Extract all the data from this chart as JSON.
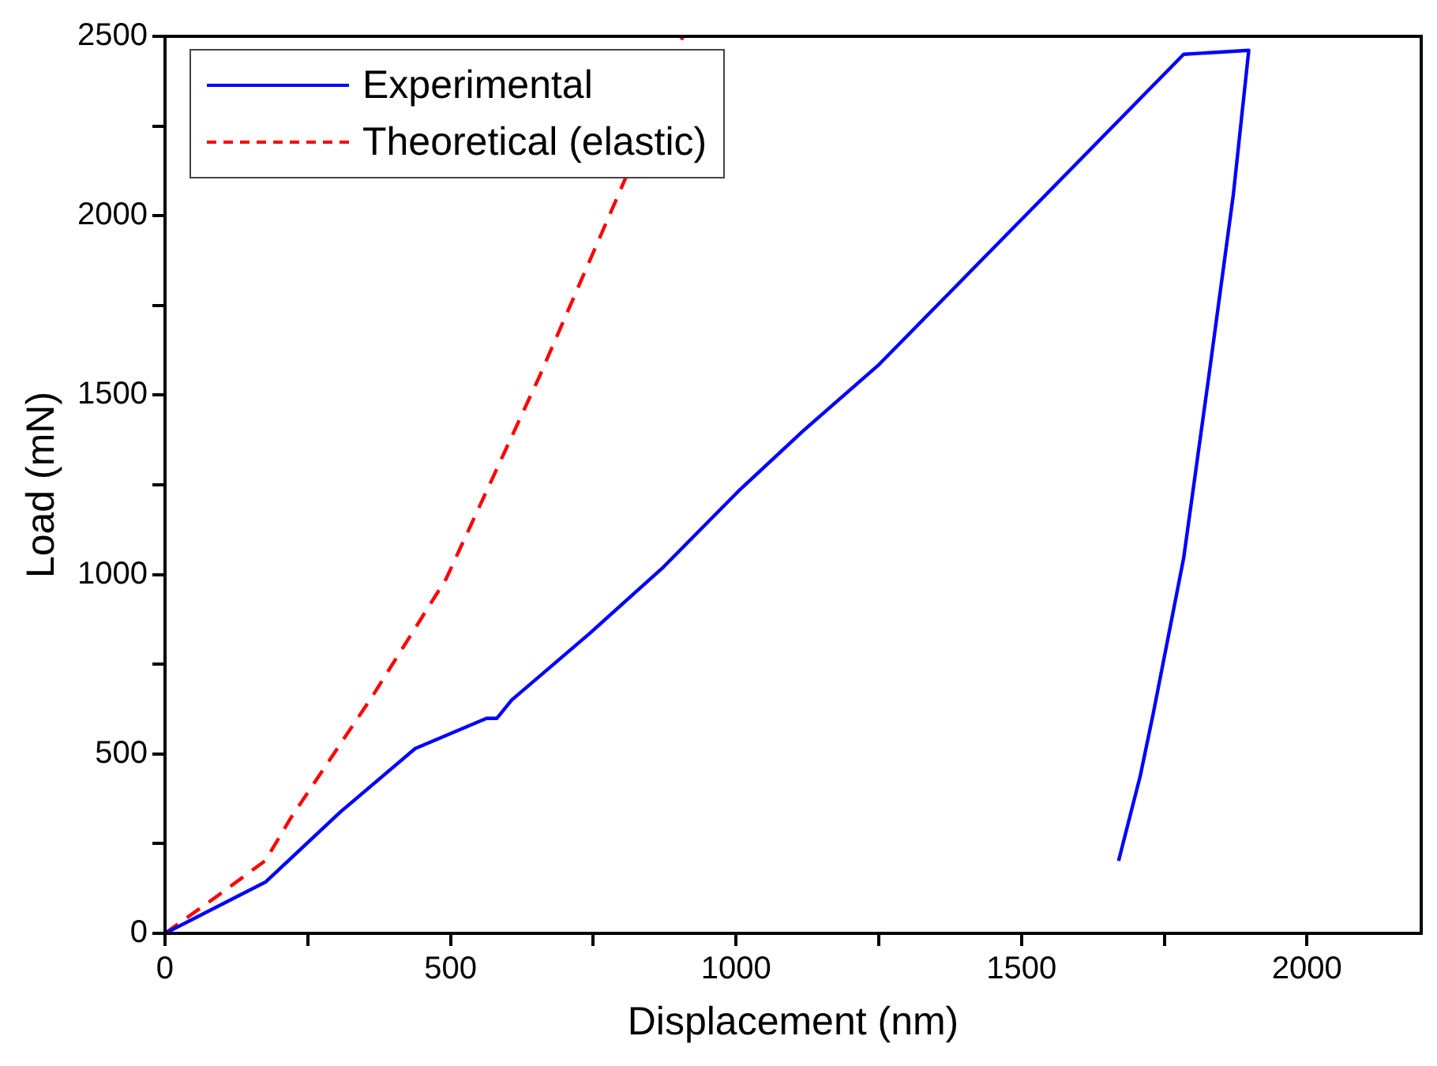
{
  "chart_data": {
    "type": "line",
    "xlabel": "Displacement (nm)",
    "ylabel": "Load (mN)",
    "xlim": [
      0,
      2200
    ],
    "ylim": [
      0,
      2500
    ],
    "xticks": [
      0,
      {
        "value": 250,
        "label": null
      },
      500,
      {
        "value": 750,
        "label": null
      },
      1000,
      {
        "value": 1250,
        "label": null
      },
      1500,
      {
        "value": 1750,
        "label": null
      },
      2000
    ],
    "yticks": [
      0,
      {
        "value": 250,
        "label": null
      },
      500,
      {
        "value": 750,
        "label": null
      },
      1000,
      {
        "value": 1250,
        "label": null
      },
      1500,
      {
        "value": 1750,
        "label": null
      },
      2000,
      {
        "value": 2250,
        "label": null
      },
      2500
    ],
    "legend": "top left",
    "grid": false,
    "marker": "none",
    "series": [
      {
        "name": "Experimental",
        "color": "#0000ff",
        "line_style": "solid",
        "x": [
          0,
          176,
          307,
          438,
          563,
          581,
          607,
          743,
          873,
          1004,
          1118,
          1251,
          1501,
          1784,
          1898,
          1871,
          1828,
          1784,
          1730,
          1708,
          1670
        ],
        "values": [
          0,
          143,
          338,
          515,
          599,
          599,
          650,
          835,
          1021,
          1232,
          1401,
          1586,
          1991,
          2450,
          2461,
          2059,
          1552,
          1046,
          607,
          439,
          202
        ]
      },
      {
        "name": "Theoretical (elastic)",
        "color": "#ff0000",
        "line_style": "dashed",
        "x": [
          0,
          89,
          176,
          220,
          362,
          492,
          656,
          808,
          907
        ],
        "values": [
          0,
          101,
          203,
          321,
          658,
          987,
          1553,
          2110,
          2500
        ]
      }
    ]
  }
}
